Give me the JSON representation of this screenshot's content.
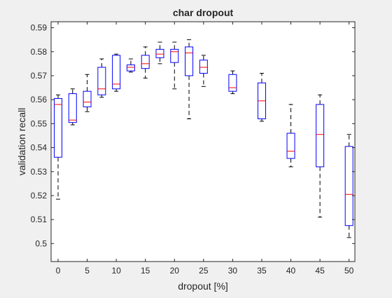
{
  "chart_data": {
    "type": "box",
    "title": "char dropout",
    "xlabel": "dropout [%]",
    "ylabel": "validation recall",
    "xlim": [
      -1.2,
      51
    ],
    "ylim": [
      0.4925,
      0.5925
    ],
    "xticks": [
      0,
      5,
      10,
      15,
      20,
      25,
      30,
      35,
      40,
      45,
      50
    ],
    "yticks": [
      0.5,
      0.51,
      0.52,
      0.53,
      0.54,
      0.55,
      0.56,
      0.57,
      0.58,
      0.59
    ],
    "grid": false,
    "colors": {
      "box": "#0000ff",
      "median": "#ff0000",
      "whisker": "#000000",
      "axes": "#262626",
      "plot_bg": "#ffffff",
      "fig_bg": "#f0f0f0"
    },
    "boxes": [
      {
        "x": 0,
        "whisker_low": 0.5185,
        "q1": 0.536,
        "median": 0.558,
        "q3": 0.5605,
        "whisker_high": 0.562
      },
      {
        "x": 2.5,
        "whisker_low": 0.5495,
        "q1": 0.5505,
        "median": 0.5515,
        "q3": 0.5625,
        "whisker_high": 0.5645
      },
      {
        "x": 5,
        "whisker_low": 0.555,
        "q1": 0.557,
        "median": 0.559,
        "q3": 0.5635,
        "whisker_high": 0.5705
      },
      {
        "x": 7.5,
        "whisker_low": 0.561,
        "q1": 0.562,
        "median": 0.5645,
        "q3": 0.5735,
        "whisker_high": 0.577
      },
      {
        "x": 10,
        "whisker_low": 0.5635,
        "q1": 0.5645,
        "median": 0.5665,
        "q3": 0.5785,
        "whisker_high": 0.579
      },
      {
        "x": 12.5,
        "whisker_low": 0.5715,
        "q1": 0.572,
        "median": 0.5735,
        "q3": 0.5745,
        "whisker_high": 0.577
      },
      {
        "x": 15,
        "whisker_low": 0.569,
        "q1": 0.573,
        "median": 0.575,
        "q3": 0.5785,
        "whisker_high": 0.582
      },
      {
        "x": 17.5,
        "whisker_low": 0.575,
        "q1": 0.5775,
        "median": 0.579,
        "q3": 0.581,
        "whisker_high": 0.584
      },
      {
        "x": 20,
        "whisker_low": 0.5645,
        "q1": 0.5755,
        "median": 0.58,
        "q3": 0.581,
        "whisker_high": 0.584
      },
      {
        "x": 22.5,
        "whisker_low": 0.552,
        "q1": 0.57,
        "median": 0.5795,
        "q3": 0.582,
        "whisker_high": 0.585
      },
      {
        "x": 25,
        "whisker_low": 0.5655,
        "q1": 0.571,
        "median": 0.5735,
        "q3": 0.5765,
        "whisker_high": 0.5785
      },
      {
        "x": 30,
        "whisker_low": 0.5625,
        "q1": 0.5635,
        "median": 0.565,
        "q3": 0.5705,
        "whisker_high": 0.572
      },
      {
        "x": 35,
        "whisker_low": 0.551,
        "q1": 0.552,
        "median": 0.5595,
        "q3": 0.567,
        "whisker_high": 0.571
      },
      {
        "x": 40,
        "whisker_low": 0.532,
        "q1": 0.5355,
        "median": 0.5385,
        "q3": 0.546,
        "whisker_high": 0.558
      },
      {
        "x": 45,
        "whisker_low": 0.511,
        "q1": 0.532,
        "median": 0.5455,
        "q3": 0.558,
        "whisker_high": 0.562
      },
      {
        "x": 50,
        "whisker_low": 0.5025,
        "q1": 0.5075,
        "median": 0.5205,
        "q3": 0.5405,
        "whisker_high": 0.5455
      }
    ]
  }
}
